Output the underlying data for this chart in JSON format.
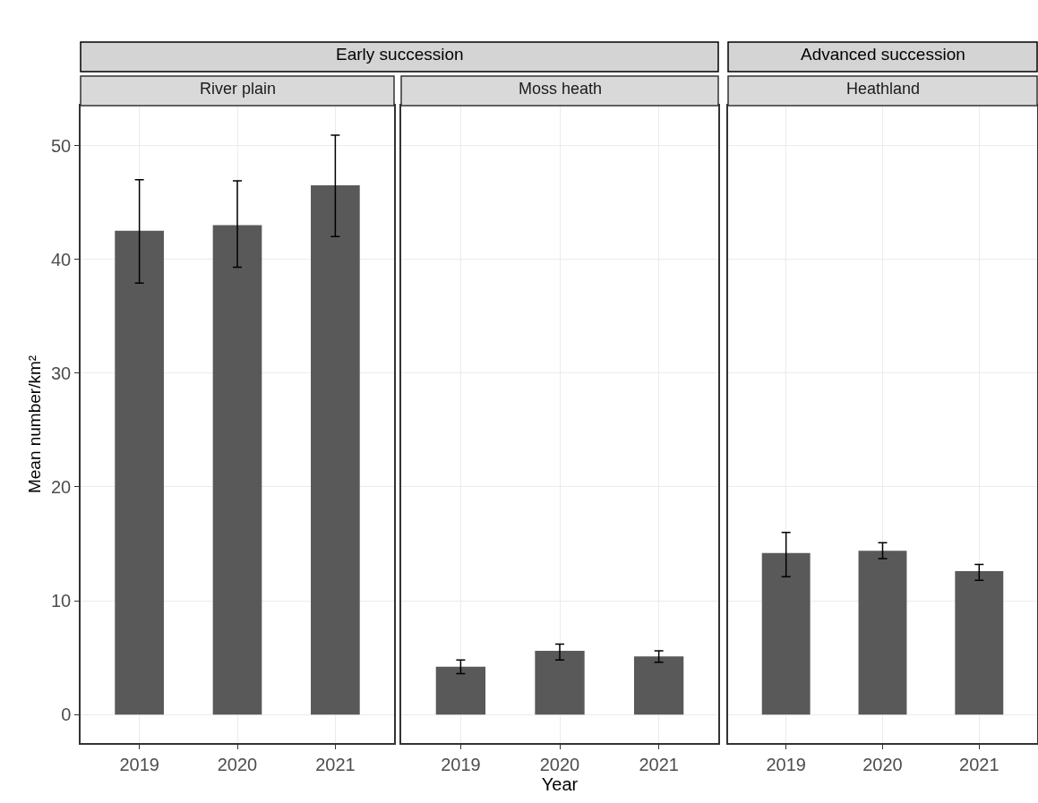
{
  "chart_data": [
    {
      "type": "bar",
      "title": "River plain",
      "ylabel": "Mean number/km²",
      "annotations": [
        "Early succession"
      ],
      "categories": [
        "2019",
        "2020",
        "2021"
      ],
      "values": [
        42.5,
        43.0,
        46.5
      ],
      "errors": [
        [
          37.9,
          47.0
        ],
        [
          39.3,
          46.9
        ],
        [
          42.0,
          50.9
        ]
      ],
      "color": "#595959",
      "ylim": [
        -2.5,
        53.5
      ],
      "yticks": [
        0,
        10,
        20,
        30,
        40,
        50
      ],
      "grid": true
    },
    {
      "type": "bar",
      "title": "Moss heath",
      "xlabel": "Year",
      "categories": [
        "2019",
        "2020",
        "2021"
      ],
      "values": [
        4.2,
        5.6,
        5.1
      ],
      "errors": [
        [
          3.6,
          4.8
        ],
        [
          4.8,
          6.2
        ],
        [
          4.6,
          5.6
        ]
      ],
      "color": "#595959",
      "ylim": [
        -2.5,
        53.5
      ],
      "yticks": [
        0,
        10,
        20,
        30,
        40,
        50
      ],
      "grid": true,
      "tick_labels": "x"
    },
    {
      "type": "bar",
      "title": "Heathland",
      "annotations": [
        "Advanced succession"
      ],
      "categories": [
        "2019",
        "2020",
        "2021"
      ],
      "values": [
        14.2,
        14.4,
        12.6
      ],
      "errors": [
        [
          12.1,
          16.0
        ],
        [
          13.7,
          15.1
        ],
        [
          11.8,
          13.2
        ]
      ],
      "color": "#595959",
      "ylim": [
        -2.5,
        53.5
      ],
      "yticks": [
        0,
        10,
        20,
        30,
        40,
        50
      ],
      "grid": true,
      "tick_labels": "x"
    }
  ]
}
